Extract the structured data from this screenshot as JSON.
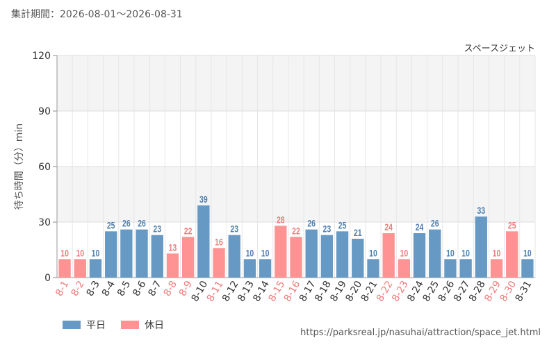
{
  "header": {
    "period_label": "集計期間",
    "separator": "：",
    "start": "2026-08-01",
    "range_sep": "～",
    "end": "2026-08-31"
  },
  "chart_data": {
    "type": "bar",
    "title": "スペースジェット",
    "ylabel": "待ち時間（分）min",
    "ylim": [
      0,
      120
    ],
    "yticks": [
      0,
      30,
      60,
      90,
      120
    ],
    "categories": [
      "8-1",
      "8-2",
      "8-3",
      "8-4",
      "8-5",
      "8-6",
      "8-7",
      "8-8",
      "8-9",
      "8-10",
      "8-11",
      "8-12",
      "8-13",
      "8-14",
      "8-15",
      "8-16",
      "8-17",
      "8-18",
      "8-19",
      "8-20",
      "8-21",
      "8-22",
      "8-23",
      "8-24",
      "8-25",
      "8-26",
      "8-27",
      "8-28",
      "8-29",
      "8-30",
      "8-31"
    ],
    "values": [
      10,
      10,
      10,
      25,
      26,
      26,
      23,
      13,
      22,
      39,
      16,
      23,
      10,
      10,
      28,
      22,
      26,
      23,
      25,
      21,
      10,
      24,
      10,
      24,
      26,
      10,
      10,
      33,
      10,
      25,
      10
    ],
    "day_type": [
      "holiday",
      "holiday",
      "weekday",
      "weekday",
      "weekday",
      "weekday",
      "weekday",
      "holiday",
      "holiday",
      "weekday",
      "holiday",
      "weekday",
      "weekday",
      "weekday",
      "holiday",
      "holiday",
      "weekday",
      "weekday",
      "weekday",
      "weekday",
      "weekday",
      "holiday",
      "holiday",
      "weekday",
      "weekday",
      "weekday",
      "weekday",
      "weekday",
      "holiday",
      "holiday",
      "weekday"
    ],
    "grid": true,
    "legend_position": "bottom-left",
    "series": [
      {
        "name": "平日",
        "key": "weekday",
        "color": "#6699c4",
        "label_color": "#4f7fae"
      },
      {
        "name": "休日",
        "key": "holiday",
        "color": "#ff9393",
        "label_color": "#f07a7a"
      }
    ]
  },
  "source_url": "https://parksreal.jp/nasuhai/attraction/space_jet.html"
}
